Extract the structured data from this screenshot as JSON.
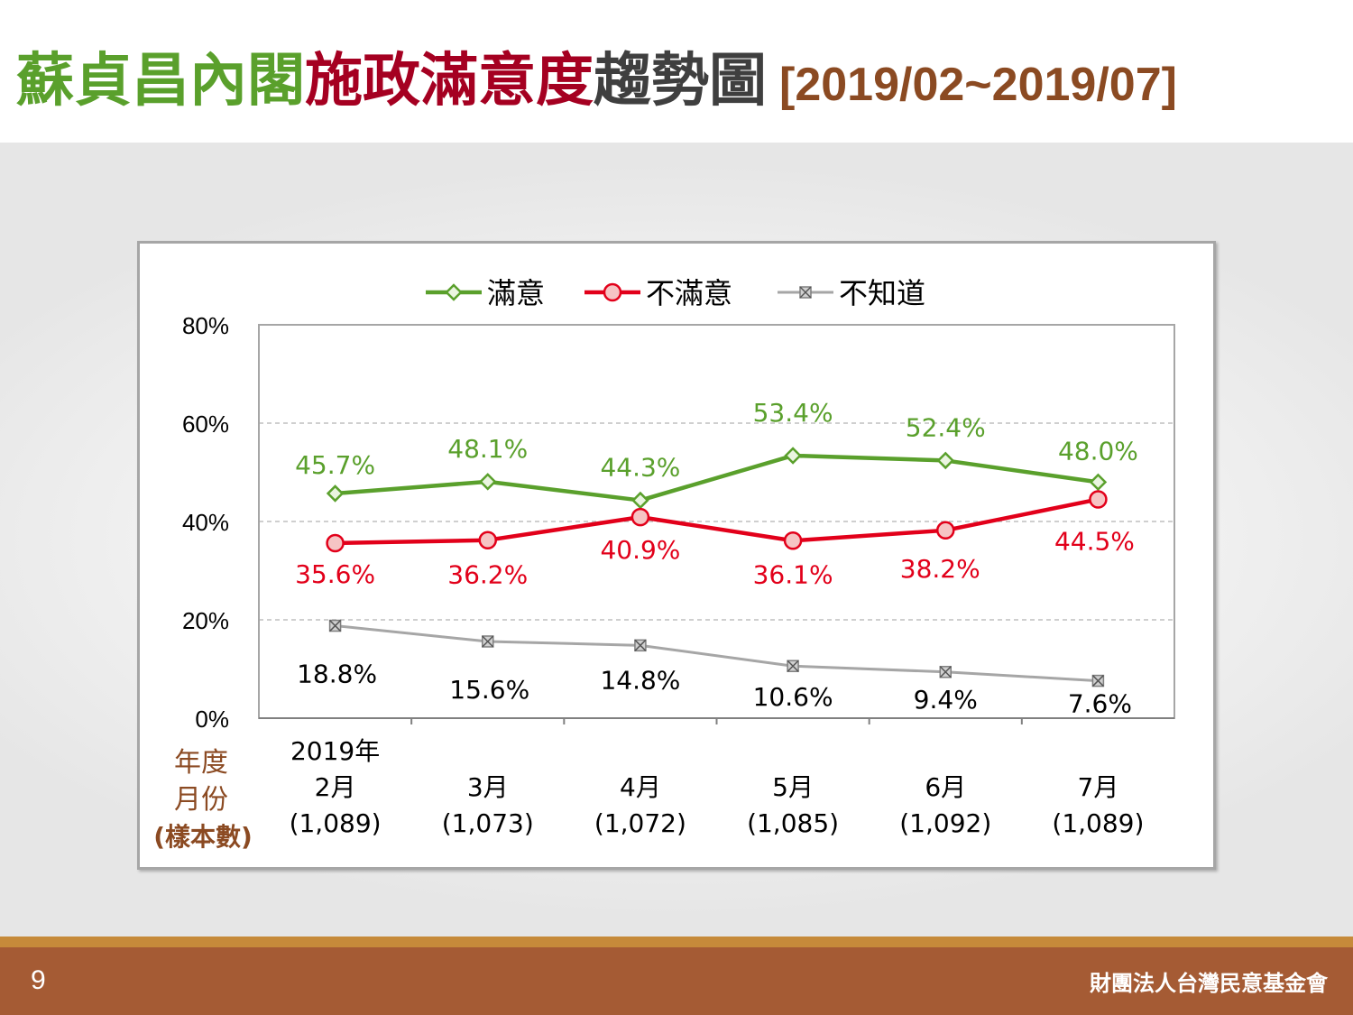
{
  "title": {
    "part1": "蘇貞昌內閣",
    "part2": "施政滿意度",
    "part3": "趨勢圖",
    "range": "[2019/02~2019/07]"
  },
  "axis_header": {
    "line1": "年度",
    "line2": "月份",
    "line3": "(樣本數)"
  },
  "footer": {
    "page_number": "9",
    "organization": "財團法人台灣民意基金會"
  },
  "colors": {
    "satisfied": "#5aa02c",
    "dissatisfied": "#e2001a",
    "unknown": "#a6a6a6",
    "axis_label": "#8b4a22"
  },
  "chart_data": {
    "type": "line",
    "categories": [
      "2019年\n2月\n(1,089)",
      "3月\n(1,073)",
      "4月\n(1,072)",
      "5月\n(1,085)",
      "6月\n(1,092)",
      "7月\n(1,089)"
    ],
    "category_lines": [
      [
        "2019年",
        "2月",
        "(1,089)"
      ],
      [
        "3月",
        "(1,073)"
      ],
      [
        "4月",
        "(1,072)"
      ],
      [
        "5月",
        "(1,085)"
      ],
      [
        "6月",
        "(1,092)"
      ],
      [
        "7月",
        "(1,089)"
      ]
    ],
    "series": [
      {
        "name": "滿意",
        "values": [
          45.7,
          48.1,
          44.3,
          53.4,
          52.4,
          48.0
        ],
        "labels": [
          "45.7%",
          "48.1%",
          "44.3%",
          "53.4%",
          "52.4%",
          "48.0%"
        ],
        "color": "#5aa02c",
        "marker": "diamond"
      },
      {
        "name": "不滿意",
        "values": [
          35.6,
          36.2,
          40.9,
          36.1,
          38.2,
          44.5
        ],
        "labels": [
          "35.6%",
          "36.2%",
          "40.9%",
          "36.1%",
          "38.2%",
          "44.5%"
        ],
        "color": "#e2001a",
        "marker": "circle"
      },
      {
        "name": "不知道",
        "values": [
          18.8,
          15.6,
          14.8,
          10.6,
          9.4,
          7.6
        ],
        "labels": [
          "18.8%",
          "15.6%",
          "14.8%",
          "10.6%",
          "9.4%",
          "7.6%"
        ],
        "color": "#a6a6a6",
        "marker": "x-square"
      }
    ],
    "y_ticks": [
      "0%",
      "20%",
      "40%",
      "60%",
      "80%"
    ],
    "ylim": [
      0,
      80
    ],
    "grid": true,
    "legend_position": "top-center"
  }
}
